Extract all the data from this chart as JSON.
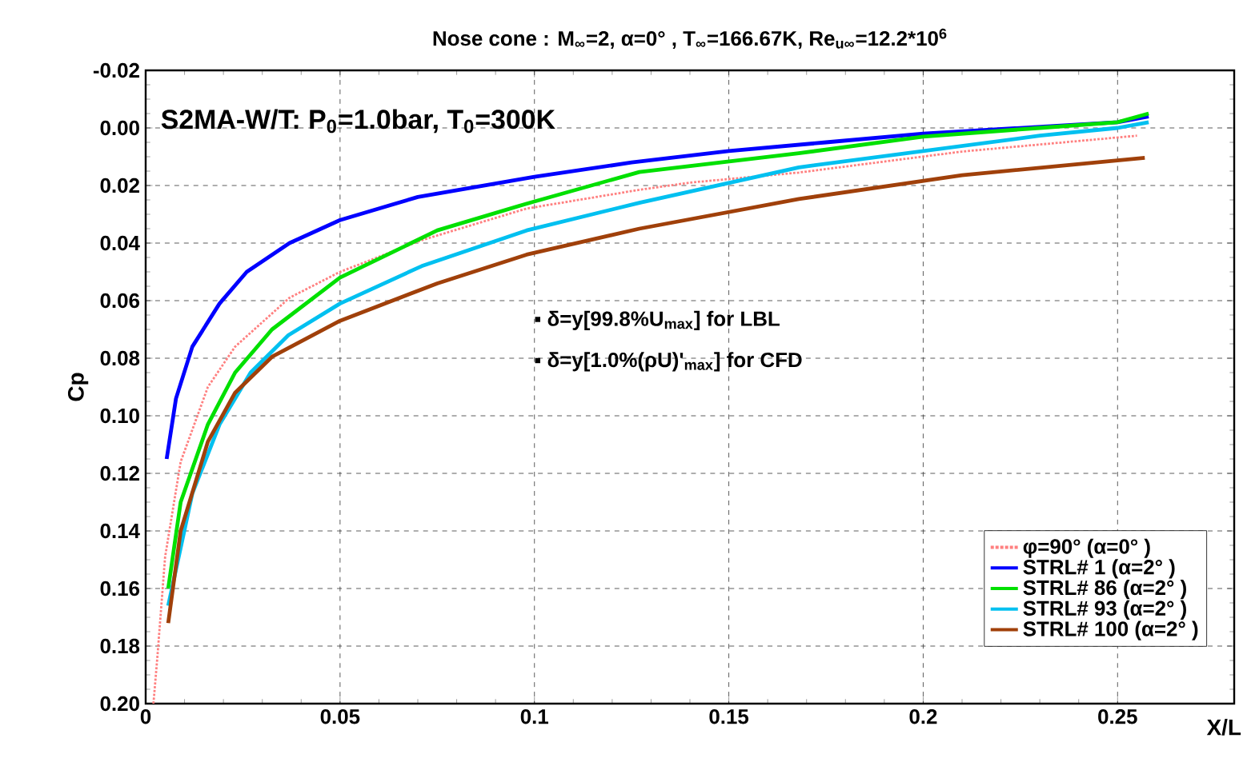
{
  "chart_data": {
    "type": "line",
    "title": "Nose cone : M$_{∞}$=2, α=0° , T$_{∞}$=166.67K, Re$_{u∞}$=12.2*10$^{6}$",
    "xlabel": "X/L",
    "ylabel": "Cp",
    "annotations": [
      "S2MA-W/T: P$_{0}$=1.0bar, T$_{0}$=300K",
      "▪ δ=y[99.8%U$_{max}$] for LBL",
      "▪ δ=y[1.0%(ρU)'$_{max}$] for CFD"
    ],
    "xlim": [
      0,
      0.28
    ],
    "xticks": [
      0,
      0.05,
      0.1,
      0.15,
      0.2,
      0.25
    ],
    "ylim": [
      0.2,
      -0.02
    ],
    "yticks": [
      -0.02,
      {
        "value": 0,
        "label": "0.00"
      },
      0.02,
      0.04,
      0.06,
      0.08,
      {
        "value": 0.1,
        "label": "0.10"
      },
      0.12,
      0.14,
      0.16,
      0.18,
      {
        "value": 0.2,
        "label": "0.20"
      }
    ],
    "grid": true,
    "legend": "bottom right",
    "marker": "none",
    "line_style": "solid",
    "series": [
      {
        "name": "φ=90° (α=0° )",
        "color": "#ff8080",
        "line_style": "dotted",
        "x": [
          0.002,
          0.003,
          0.005,
          0.009,
          0.016,
          0.023,
          0.037,
          0.05,
          0.071,
          0.098,
          0.127,
          0.14,
          0.168,
          0.21,
          0.255
        ],
        "values": [
          0.2,
          0.184,
          0.149,
          0.116,
          0.09,
          0.076,
          0.059,
          0.05,
          0.039,
          0.028,
          0.0215,
          0.019,
          0.0155,
          0.0082,
          0.0027
        ]
      },
      {
        "name": "STRL# 1 (α=2° )",
        "color": "#0000ff",
        "x": [
          0.0054,
          0.0078,
          0.012,
          0.019,
          0.026,
          0.037,
          0.05,
          0.07,
          0.1,
          0.125,
          0.15,
          0.175,
          0.2,
          0.225,
          0.25,
          0.258
        ],
        "values": [
          0.115,
          0.094,
          0.076,
          0.061,
          0.05,
          0.04,
          0.032,
          0.024,
          0.017,
          0.012,
          0.008,
          0.005,
          0.002,
          0.0,
          -0.002,
          -0.004
        ]
      },
      {
        "name": "STRL# 86 (α=2° )",
        "color": "#00e000",
        "x": [
          0.0058,
          0.009,
          0.016,
          0.023,
          0.0325,
          0.05,
          0.075,
          0.098,
          0.127,
          0.168,
          0.2,
          0.23,
          0.25,
          0.258
        ],
        "values": [
          0.16,
          0.13,
          0.103,
          0.085,
          0.07,
          0.052,
          0.0356,
          0.0263,
          0.0153,
          0.0088,
          0.003,
          0.0,
          -0.002,
          -0.005
        ]
      },
      {
        "name": "STRL# 93 (α=2° )",
        "color": "#00c0f0",
        "x": [
          0.0058,
          0.012,
          0.019,
          0.027,
          0.0367,
          0.05,
          0.071,
          0.098,
          0.127,
          0.168,
          0.23,
          0.25,
          0.258
        ],
        "values": [
          0.166,
          0.127,
          0.103,
          0.085,
          0.072,
          0.061,
          0.048,
          0.0356,
          0.026,
          0.0137,
          0.0027,
          0.0,
          -0.002
        ]
      },
      {
        "name": "STRL# 100 (α=2° )",
        "color": "#a0400a",
        "x": [
          0.0058,
          0.009,
          0.016,
          0.023,
          0.0325,
          0.05,
          0.075,
          0.098,
          0.127,
          0.168,
          0.21,
          0.257
        ],
        "values": [
          0.172,
          0.14,
          0.109,
          0.092,
          0.0795,
          0.067,
          0.054,
          0.044,
          0.035,
          0.0247,
          0.0164,
          0.0104
        ]
      }
    ]
  }
}
